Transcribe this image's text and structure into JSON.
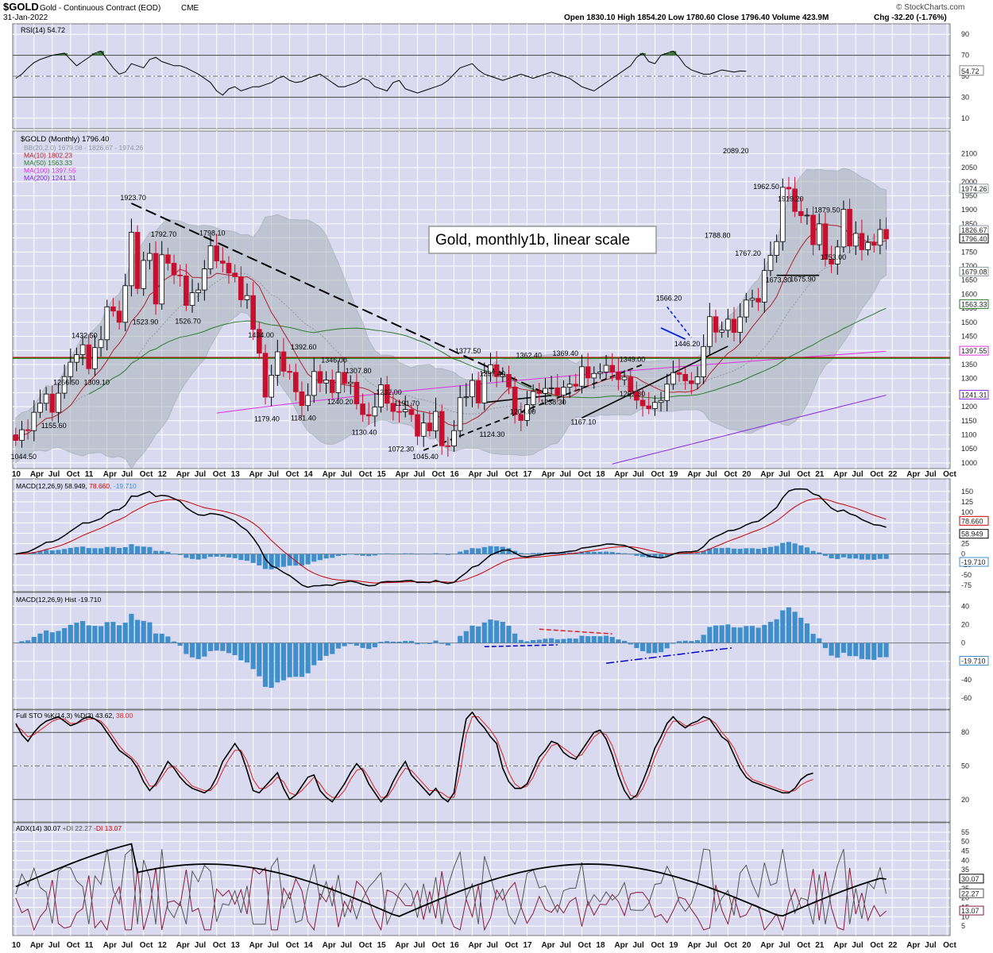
{
  "header": {
    "symbol": "$GOLD",
    "name": "Gold - Continuous Contract (EOD)",
    "exchange": "CME",
    "date": "31-Jan-2022",
    "ohlc_text": "Open 1830.10  High 1854.20  Low 1780.60  Close 1796.40  Volume 423.9M",
    "chg_text": "Chg -32.20 (-1.76%)",
    "watermark": "© StockCharts.com"
  },
  "colors": {
    "panel_bg": "#d9d9ef",
    "up": "#ffffff",
    "down": "#c8102e",
    "ma10": "#b3202a",
    "ma50": "#2e7d2e",
    "ma100": "#e030e0",
    "ma200": "#8a2be2",
    "bb": "#a9b3bb",
    "hist": "#3f8fcc"
  },
  "chart_data": [
    {
      "type": "line",
      "panel": "rsi",
      "title": "RSI(14) 54.72",
      "yticks": [
        10,
        30,
        50,
        70,
        90
      ],
      "ylim": [
        0,
        100
      ],
      "levels": [
        30,
        70
      ],
      "last_label": "54.72",
      "values": [
        48,
        52,
        58,
        63,
        66,
        68,
        70,
        71,
        72,
        66,
        60,
        64,
        68,
        72,
        74,
        66,
        58,
        52,
        54,
        62,
        60,
        58,
        66,
        68,
        64,
        62,
        60,
        60,
        58,
        55,
        52,
        48,
        44,
        36,
        32,
        38,
        40,
        36,
        38,
        40,
        40,
        42,
        44,
        48,
        50,
        46,
        44,
        45,
        48,
        50,
        52,
        48,
        44,
        40,
        40,
        42,
        44,
        48,
        46,
        40,
        38,
        36,
        44,
        46,
        38,
        36,
        34,
        36,
        38,
        40,
        42,
        46,
        52,
        58,
        60,
        62,
        56,
        52,
        50,
        48,
        46,
        48,
        50,
        52,
        50,
        48,
        50,
        52,
        54,
        52,
        50,
        48,
        44,
        40,
        38,
        36,
        40,
        44,
        48,
        52,
        56,
        60,
        68,
        72,
        64,
        62,
        70,
        72,
        74,
        68,
        60,
        56,
        54,
        52,
        52,
        54,
        56,
        55,
        54,
        55,
        54.72
      ],
      "annotations": [
        "Lines at 30 and 70"
      ]
    },
    {
      "type": "candlestick",
      "panel": "price",
      "title": "$GOLD (Monthly) 1796.40",
      "legend": [
        {
          "text": "BB(20,2.0) 1679.08 - 1826.67 - 1974.26",
          "color": "#8f9aa3"
        },
        {
          "text": "MA(10) 1802.23",
          "color": "#b3202a"
        },
        {
          "text": "MA(50) 1563.33",
          "color": "#2e7d2e"
        },
        {
          "text": "MA(100) 1397.55",
          "color": "#e030e0"
        },
        {
          "text": "MA(200) 1241.31",
          "color": "#8a2be2"
        }
      ],
      "ylim": [
        980,
        2180
      ],
      "yticks": [
        1000,
        1050,
        1100,
        1150,
        1200,
        1250,
        1300,
        1350,
        1400,
        1450,
        1500,
        1550,
        1600,
        1650,
        1700,
        1750,
        1800,
        1850,
        1900,
        1950,
        2000,
        2050,
        2100
      ],
      "x_start": "2010-01",
      "x_end": "2022-10",
      "closes": [
        1080,
        1118,
        1115,
        1180,
        1212,
        1245,
        1180,
        1248,
        1307,
        1358,
        1385,
        1420,
        1335,
        1410,
        1438,
        1555,
        1540,
        1500,
        1630,
        1820,
        1620,
        1720,
        1745,
        1565,
        1740,
        1710,
        1668,
        1665,
        1560,
        1605,
        1615,
        1690,
        1772,
        1718,
        1710,
        1675,
        1662,
        1580,
        1595,
        1475,
        1390,
        1234,
        1312,
        1395,
        1326,
        1322,
        1253,
        1204,
        1240,
        1325,
        1284,
        1295,
        1250,
        1322,
        1282,
        1287,
        1210,
        1172,
        1167,
        1199,
        1278,
        1212,
        1183,
        1182,
        1190,
        1172,
        1095,
        1142,
        1114,
        1183,
        1061,
        1060,
        1115,
        1232,
        1235,
        1293,
        1213,
        1320,
        1349,
        1307,
        1315,
        1270,
        1172,
        1151,
        1207,
        1254,
        1247,
        1265,
        1267,
        1241,
        1269,
        1280,
        1273,
        1342,
        1302,
        1318,
        1323,
        1347,
        1323,
        1296,
        1305,
        1253,
        1223,
        1203,
        1193,
        1215,
        1222,
        1280,
        1321,
        1315,
        1292,
        1282,
        1306,
        1414,
        1520,
        1465,
        1472,
        1511,
        1464,
        1519,
        1579,
        1585,
        1572,
        1684,
        1738,
        1787,
        1980,
        1974,
        1894,
        1879,
        1881,
        1776,
        1850,
        1724,
        1707,
        1768,
        1902,
        1771,
        1816,
        1758,
        1784,
        1774,
        1830,
        1796.4
      ],
      "point_labels": [
        {
          "text": "1044.50",
          "i": 1,
          "price": 1044.5,
          "side": "below"
        },
        {
          "text": "1155.60",
          "i": 6,
          "price": 1155.6,
          "side": "below"
        },
        {
          "text": "1266.50",
          "i": 8,
          "price": 1266.5,
          "side": "above"
        },
        {
          "text": "1309.10",
          "i": 13,
          "price": 1309.1,
          "side": "below"
        },
        {
          "text": "1432.50",
          "i": 11,
          "price": 1432.5,
          "side": "above"
        },
        {
          "text": "1923.70",
          "i": 19,
          "price": 1923.7,
          "side": "above"
        },
        {
          "text": "1523.90",
          "i": 21,
          "price": 1523.9,
          "side": "below"
        },
        {
          "text": "1792.70",
          "i": 24,
          "price": 1792.7,
          "side": "above"
        },
        {
          "text": "1526.70",
          "i": 28,
          "price": 1526.7,
          "side": "below"
        },
        {
          "text": "1798.10",
          "i": 32,
          "price": 1798.1,
          "side": "above"
        },
        {
          "text": "1434.00",
          "i": 40,
          "price": 1434.0,
          "side": "above"
        },
        {
          "text": "1179.40",
          "i": 41,
          "price": 1179.4,
          "side": "below"
        },
        {
          "text": "1392.60",
          "i": 47,
          "price": 1392.6,
          "side": "above"
        },
        {
          "text": "1181.40",
          "i": 47,
          "price": 1181.4,
          "side": "below"
        },
        {
          "text": "1346.00",
          "i": 52,
          "price": 1346.0,
          "side": "above"
        },
        {
          "text": "1240.20",
          "i": 53,
          "price": 1240.2,
          "side": "below"
        },
        {
          "text": "1307.80",
          "i": 56,
          "price": 1307.8,
          "side": "above"
        },
        {
          "text": "1130.40",
          "i": 57,
          "price": 1130.4,
          "side": "below"
        },
        {
          "text": "1232.00",
          "i": 61,
          "price": 1232.0,
          "side": "above"
        },
        {
          "text": "1191.70",
          "i": 64,
          "price": 1191.7,
          "side": "above"
        },
        {
          "text": "1072.30",
          "i": 63,
          "price": 1072.3,
          "side": "below"
        },
        {
          "text": "1045.40",
          "i": 67,
          "price": 1045.4,
          "side": "below"
        },
        {
          "text": "1377.50",
          "i": 74,
          "price": 1377.5,
          "side": "above"
        },
        {
          "text": "1297.40",
          "i": 78,
          "price": 1297.4,
          "side": "above"
        },
        {
          "text": "1124.30",
          "i": 78,
          "price": 1124.3,
          "side": "below"
        },
        {
          "text": "1362.40",
          "i": 84,
          "price": 1362.4,
          "side": "above"
        },
        {
          "text": "1204.00",
          "i": 83,
          "price": 1204.0,
          "side": "below"
        },
        {
          "text": "1238.30",
          "i": 88,
          "price": 1238.3,
          "side": "below"
        },
        {
          "text": "1369.40",
          "i": 90,
          "price": 1369.4,
          "side": "above"
        },
        {
          "text": "1167.10",
          "i": 93,
          "price": 1167.1,
          "side": "below"
        },
        {
          "text": "1349.00",
          "i": 101,
          "price": 1349.0,
          "side": "above"
        },
        {
          "text": "1267.30",
          "i": 101,
          "price": 1267.3,
          "side": "below"
        },
        {
          "text": "1566.20",
          "i": 107,
          "price": 1566.2,
          "side": "above"
        },
        {
          "text": "1446.20",
          "i": 110,
          "price": 1446.2,
          "side": "below"
        },
        {
          "text": "1788.80",
          "i": 115,
          "price": 1788.8,
          "side": "above"
        },
        {
          "text": "2089.20",
          "i": 118,
          "price": 2089.2,
          "side": "above"
        },
        {
          "text": "1767.20",
          "i": 120,
          "price": 1767.2,
          "side": "below"
        },
        {
          "text": "1962.50",
          "i": 123,
          "price": 1962.5,
          "side": "above"
        },
        {
          "text": "1919.20",
          "i": 127,
          "price": 1919.2,
          "side": "above"
        },
        {
          "text": "1673.30",
          "i": 125,
          "price": 1673.3,
          "side": "below"
        },
        {
          "text": "1675.90",
          "i": 129,
          "price": 1675.9,
          "side": "below"
        },
        {
          "text": "1879.50",
          "i": 133,
          "price": 1879.5,
          "side": "above"
        },
        {
          "text": "1753.00",
          "i": 134,
          "price": 1753.0,
          "side": "below"
        }
      ],
      "right_labels": [
        {
          "text": "1974.26",
          "price": 1974.26,
          "color": "#8f9aa3"
        },
        {
          "text": "1826.67",
          "price": 1826.67,
          "color": "#8f9aa3"
        },
        {
          "text": "1796.40",
          "price": 1796.4,
          "color": "#000000"
        },
        {
          "text": "1679.08",
          "price": 1679.08,
          "color": "#8f9aa3"
        },
        {
          "text": "1563.33",
          "price": 1563.33,
          "color": "#2e7d2e"
        },
        {
          "text": "1397.55",
          "price": 1397.55,
          "color": "#e030e0"
        },
        {
          "text": "1241.31",
          "price": 1241.31,
          "color": "#8a2be2"
        }
      ],
      "annotation_box": "Gold, monthly1b, linear scale",
      "levels": [
        {
          "price": 1375,
          "color": "#cc0000"
        },
        {
          "price": 1375,
          "color": "#008800"
        }
      ]
    },
    {
      "type": "line",
      "panel": "macd",
      "title": "MACD(12,26,9) 58.949, 78.660, -19.710",
      "title_parts": [
        "MACD(12,26,9) 58.949, ",
        "78.660",
        ", -19.710"
      ],
      "ylim": [
        -90,
        180
      ],
      "yticks": [
        -75,
        -50,
        -25,
        0,
        25,
        50,
        75,
        100,
        125,
        150
      ],
      "right_labels": [
        {
          "text": "78.660",
          "value": 78.66,
          "color": "#cc0000"
        },
        {
          "text": "58.949",
          "value": 58.949,
          "color": "#000000"
        },
        {
          "text": "-19.710",
          "value": -19.71,
          "color": "#3f8fcc"
        }
      ]
    },
    {
      "type": "bar",
      "panel": "macd_hist",
      "title": "MACD(12,26,9) Hist -19.710",
      "ylim": [
        -72,
        55
      ],
      "yticks": [
        -60,
        -40,
        -20,
        0,
        20,
        40
      ],
      "right_labels": [
        {
          "text": "-19.710",
          "value": -19.71,
          "color": "#3f8fcc"
        }
      ]
    },
    {
      "type": "line",
      "panel": "stochastic",
      "title": "Full STO %K(14,3) %D(3) 43.62, 38.00",
      "title_parts": [
        "Full STO %K(14,3) %D(3) 43.62, ",
        "38.00"
      ],
      "ylim": [
        0,
        100
      ],
      "yticks": [
        20,
        50,
        80
      ],
      "levels": [
        20,
        80
      ],
      "k_values": [
        88,
        78,
        72,
        80,
        86,
        90,
        92,
        94,
        90,
        86,
        88,
        92,
        94,
        92,
        88,
        80,
        72,
        64,
        60,
        56,
        48,
        36,
        28,
        34,
        44,
        54,
        48,
        40,
        34,
        30,
        28,
        26,
        30,
        40,
        54,
        62,
        70,
        62,
        46,
        28,
        26,
        32,
        38,
        44,
        30,
        20,
        24,
        32,
        40,
        42,
        28,
        22,
        18,
        26,
        34,
        44,
        52,
        46,
        34,
        26,
        18,
        24,
        36,
        46,
        54,
        42,
        36,
        30,
        24,
        30,
        22,
        18,
        26,
        62,
        92,
        98,
        90,
        84,
        76,
        70,
        48,
        36,
        30,
        30,
        34,
        46,
        58,
        64,
        72,
        70,
        62,
        58,
        56,
        64,
        72,
        80,
        82,
        74,
        60,
        42,
        28,
        20,
        24,
        36,
        50,
        66,
        76,
        88,
        94,
        88,
        84,
        88,
        90,
        94,
        92,
        84,
        76,
        72,
        60,
        48,
        40,
        36,
        34,
        32,
        30,
        28,
        26,
        26,
        30,
        38,
        42,
        43.62
      ],
      "d_values": [
        86,
        82,
        76,
        78,
        82,
        86,
        90,
        92,
        92,
        88,
        88,
        90,
        92,
        92,
        90,
        84,
        76,
        68,
        62,
        58,
        52,
        42,
        32,
        32,
        40,
        48,
        50,
        44,
        38,
        32,
        30,
        28,
        28,
        34,
        46,
        56,
        64,
        64,
        54,
        38,
        30,
        30,
        34,
        40,
        36,
        26,
        24,
        28,
        34,
        40,
        34,
        26,
        22,
        22,
        28,
        38,
        46,
        48,
        40,
        30,
        22,
        22,
        30,
        40,
        48,
        46,
        40,
        34,
        28,
        28,
        26,
        22,
        22,
        44,
        78,
        94,
        94,
        88,
        82,
        74,
        60,
        44,
        34,
        30,
        32,
        40,
        52,
        60,
        68,
        70,
        66,
        62,
        58,
        60,
        68,
        76,
        80,
        78,
        68,
        52,
        36,
        24,
        22,
        30,
        42,
        58,
        70,
        82,
        90,
        90,
        86,
        86,
        88,
        90,
        92,
        88,
        80,
        74,
        66,
        54,
        44,
        38,
        36,
        34,
        32,
        30,
        28,
        27,
        28,
        33,
        36,
        38.0
      ]
    },
    {
      "type": "line",
      "panel": "adx",
      "title": "ADX(14) 30.07  +DI 22.27  -DI 13.07",
      "title_parts": [
        "ADX(14) 30.07  ",
        "+DI 22.27",
        "  ",
        "-DI 13.07"
      ],
      "ylim": [
        0,
        60
      ],
      "yticks": [
        5,
        10,
        15,
        20,
        25,
        30,
        35,
        40,
        45,
        50,
        55
      ],
      "right_labels": [
        {
          "text": "30.07",
          "value": 30.07,
          "color": "#000000"
        },
        {
          "text": "22.27",
          "value": 22.27,
          "color": "#555555"
        },
        {
          "text": "13.07",
          "value": 13.07,
          "color": "#8b1a3a"
        }
      ]
    }
  ],
  "x_axis": {
    "labels": [
      "10",
      "Apr",
      "Jul",
      "Oct",
      "11",
      "Apr",
      "Jul",
      "Oct",
      "12",
      "Apr",
      "Jul",
      "Oct",
      "13",
      "Apr",
      "Jul",
      "Oct",
      "14",
      "Apr",
      "Jul",
      "Oct",
      "15",
      "Apr",
      "Jul",
      "Oct",
      "16",
      "Apr",
      "Jul",
      "Oct",
      "17",
      "Apr",
      "Jul",
      "Oct",
      "18",
      "Apr",
      "Jul",
      "Oct",
      "19",
      "Apr",
      "Jul",
      "Oct",
      "20",
      "Apr",
      "Jul",
      "Oct",
      "21",
      "Apr",
      "Jul",
      "Oct",
      "22",
      "Apr",
      "Jul",
      "Oct"
    ]
  }
}
